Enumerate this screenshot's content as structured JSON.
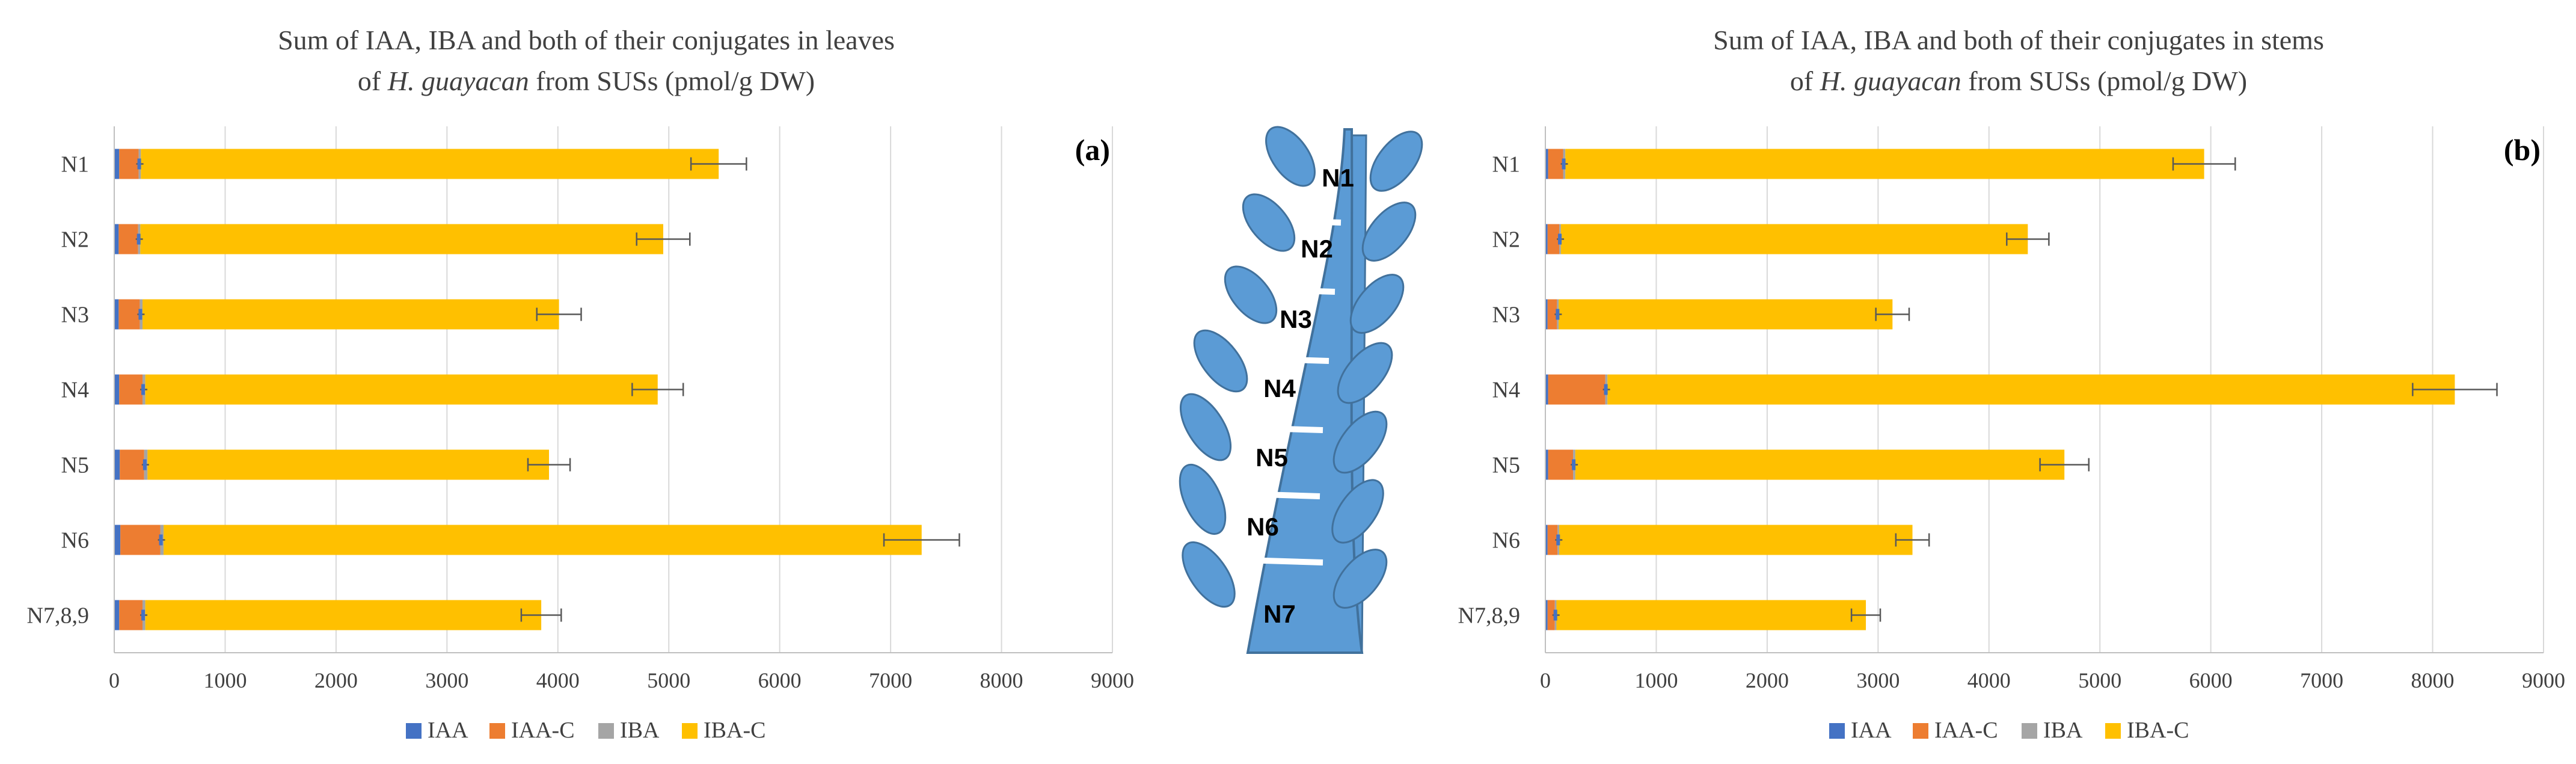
{
  "colors": {
    "IAA": "#4472C4",
    "IAA-C": "#ED7D31",
    "IBA": "#A5A5A5",
    "IBA-C": "#FFC000",
    "leaf": "#5B9BD5",
    "leaf_stroke": "#41719C",
    "grid": "#D9D9D9",
    "axis": "#BFBFBF",
    "text": "#404040",
    "error": "#595959"
  },
  "illustration": {
    "labels": [
      "N1",
      "N2",
      "N3",
      "N4",
      "N5",
      "N6",
      "N7"
    ]
  },
  "chart_data": [
    {
      "id": "a",
      "type": "stacked-horizontal-bar",
      "panel_label": "(a)",
      "title_line1": "Sum of IAA, IBA and both of their conjugates in leaves",
      "title_line2_pre": "of ",
      "title_line2_italic": "H. guayacan",
      "title_line2_post": " from SUSs (pmol/g DW)",
      "categories": [
        "N1",
        "N2",
        "N3",
        "N4",
        "N5",
        "N6",
        "N7,8,9"
      ],
      "series": [
        {
          "name": "IAA",
          "values": [
            45,
            40,
            40,
            45,
            50,
            55,
            45
          ]
        },
        {
          "name": "IAA-C",
          "values": [
            175,
            175,
            190,
            210,
            220,
            360,
            210
          ]
        },
        {
          "name": "IBA",
          "values": [
            20,
            20,
            25,
            25,
            30,
            30,
            25
          ]
        },
        {
          "name": "IBA-C",
          "values": [
            5210,
            4715,
            3755,
            4620,
            3620,
            6835,
            3570
          ]
        }
      ],
      "totals": [
        5450,
        4950,
        4010,
        4900,
        3920,
        7280,
        3850
      ],
      "errors": [
        250,
        240,
        200,
        230,
        190,
        340,
        180
      ],
      "xlim": [
        0,
        9000
      ],
      "xticks": [
        0,
        1000,
        2000,
        3000,
        4000,
        5000,
        6000,
        7000,
        8000,
        9000
      ],
      "legend": [
        "IAA",
        "IAA-C",
        "IBA",
        "IBA-C"
      ],
      "legend_position": "bottom"
    },
    {
      "id": "b",
      "type": "stacked-horizontal-bar",
      "panel_label": "(b)",
      "title_line1": "Sum of IAA, IBA and both of their conjugates in stems",
      "title_line2_pre": "of ",
      "title_line2_italic": "H. guayacan",
      "title_line2_post": " from SUSs (pmol/g DW)",
      "categories": [
        "N1",
        "N2",
        "N3",
        "N4",
        "N5",
        "N6",
        "N7,8,9"
      ],
      "series": [
        {
          "name": "IAA",
          "values": [
            25,
            20,
            20,
            25,
            25,
            20,
            20
          ]
        },
        {
          "name": "IAA-C",
          "values": [
            135,
            105,
            85,
            515,
            225,
            90,
            65
          ]
        },
        {
          "name": "IBA",
          "values": [
            20,
            15,
            15,
            20,
            20,
            15,
            15
          ]
        },
        {
          "name": "IBA-C",
          "values": [
            5760,
            4210,
            3010,
            7640,
            4410,
            3185,
            2790
          ]
        }
      ],
      "totals": [
        5940,
        4350,
        3130,
        8200,
        4680,
        3310,
        2890
      ],
      "errors": [
        280,
        190,
        150,
        380,
        220,
        150,
        130
      ],
      "xlim": [
        0,
        9000
      ],
      "xticks": [
        0,
        1000,
        2000,
        3000,
        4000,
        5000,
        6000,
        7000,
        8000,
        9000
      ],
      "legend": [
        "IAA",
        "IAA-C",
        "IBA",
        "IBA-C"
      ],
      "legend_position": "bottom"
    }
  ]
}
